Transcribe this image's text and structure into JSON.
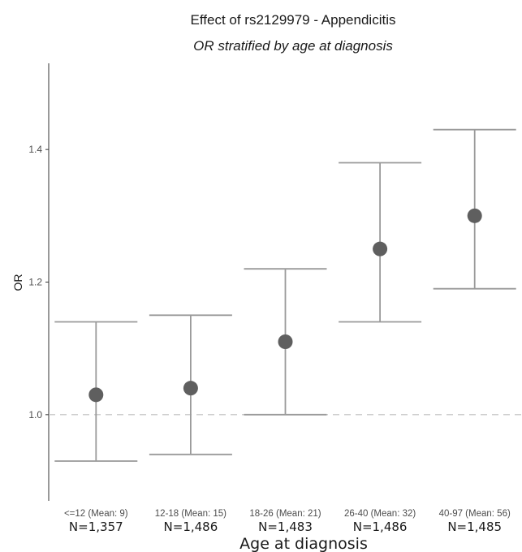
{
  "chart_data": {
    "type": "scatter",
    "title": "Effect of rs2129979 - Appendicitis",
    "subtitle": "OR stratified by age at diagnosis",
    "xlabel": "Age at diagnosis",
    "ylabel": "OR",
    "ylim": [
      0.87,
      1.53
    ],
    "yticks": [
      {
        "value": 1.0,
        "label": "1.0"
      },
      {
        "value": 1.2,
        "label": "1.2"
      },
      {
        "value": 1.4,
        "label": "1.4"
      }
    ],
    "reference_line": {
      "value": 1.0,
      "style": "dashed"
    },
    "grid": false,
    "categories": [
      "<=12 (Mean: 9)",
      "12-18 (Mean: 15)",
      "18-26 (Mean: 21)",
      "26-40 (Mean: 32)",
      "40-97 (Mean: 56)"
    ],
    "counts": [
      "N=1,357",
      "N=1,486",
      "N=1,483",
      "N=1,486",
      "N=1,485"
    ],
    "values": [
      1.03,
      1.04,
      1.11,
      1.25,
      1.3
    ],
    "ci_lower": [
      0.93,
      0.94,
      1.0,
      1.14,
      1.19
    ],
    "ci_upper": [
      1.14,
      1.15,
      1.22,
      1.38,
      1.43
    ],
    "colors": {
      "point": "#5f5f5f",
      "errorbar": "#9a9a9a",
      "reference": "#bdbdbd",
      "axis": "#333333"
    }
  }
}
